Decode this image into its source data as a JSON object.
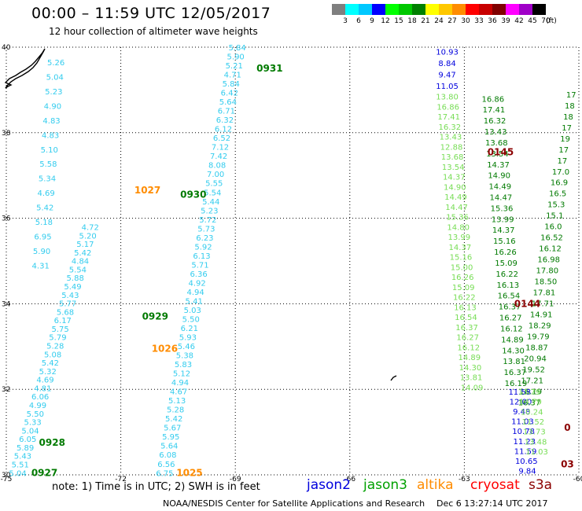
{
  "header": {
    "title": "00:00 – 11:59 UTC 12/05/2017",
    "subtitle": "12 hour collection of altimeter wave heights"
  },
  "legend": {
    "unit": "(ft)",
    "bins": [
      {
        "label": "3",
        "color": "#7f7f7f"
      },
      {
        "label": "6",
        "color": "#00ffff"
      },
      {
        "label": "9",
        "color": "#00c8ff"
      },
      {
        "label": "12",
        "color": "#0000ff"
      },
      {
        "label": "15",
        "color": "#00ff00"
      },
      {
        "label": "18",
        "color": "#00c800"
      },
      {
        "label": "21",
        "color": "#008000"
      },
      {
        "label": "24",
        "color": "#ffff00"
      },
      {
        "label": "27",
        "color": "#ffc800"
      },
      {
        "label": "30",
        "color": "#ff8c00"
      },
      {
        "label": "33",
        "color": "#ff0000"
      },
      {
        "label": "36",
        "color": "#c80000"
      },
      {
        "label": "39",
        "color": "#800000"
      },
      {
        "label": "42",
        "color": "#ff00ff"
      },
      {
        "label": "45",
        "color": "#a000c8"
      },
      {
        "label": "70",
        "color": "#000000"
      }
    ]
  },
  "map": {
    "lon_range": [
      -75,
      -60
    ],
    "lat_range": [
      30,
      40
    ],
    "lon_ticks": [
      "-75",
      "-72",
      "-69",
      "-66",
      "-63",
      "-60"
    ],
    "lat_ticks": [
      "30",
      "32",
      "34",
      "36",
      "38",
      "40"
    ],
    "colors": {
      "cyan": "#33ccee",
      "green": "#007a00",
      "lightgreen": "#77dd55",
      "blue": "#0000dd",
      "orange": "#ff8c00",
      "darkred": "#8b0000"
    },
    "time_labels": [
      {
        "text": "0931",
        "lon": -68.1,
        "lat": 39.5,
        "color": "green"
      },
      {
        "text": "0930",
        "lon": -70.1,
        "lat": 36.55,
        "color": "green"
      },
      {
        "text": "0929",
        "lon": -71.1,
        "lat": 33.7,
        "color": "green"
      },
      {
        "text": "0928",
        "lon": -73.8,
        "lat": 30.75,
        "color": "green"
      },
      {
        "text": "0927",
        "lon": -74.0,
        "lat": 30.05,
        "color": "green"
      },
      {
        "text": "1027",
        "lon": -71.3,
        "lat": 36.65,
        "color": "orange"
      },
      {
        "text": "1026",
        "lon": -70.85,
        "lat": 32.95,
        "color": "orange"
      },
      {
        "text": "1025",
        "lon": -70.2,
        "lat": 30.05,
        "color": "orange"
      },
      {
        "text": "0145",
        "lon": -62.05,
        "lat": 37.55,
        "color": "darkred"
      },
      {
        "text": "0144",
        "lon": -61.35,
        "lat": 34.0,
        "color": "darkred"
      },
      {
        "text": "03",
        "lon": -60.3,
        "lat": 30.25,
        "color": "darkred"
      },
      {
        "text": "0",
        "lon": -60.3,
        "lat": 31.1,
        "color": "darkred"
      }
    ],
    "tracks": [
      {
        "name": "track-0927-a",
        "color": "cyan",
        "lon_start": -73.7,
        "lat_start": 39.65,
        "lon_end": -74.1,
        "lat_end": 34.9,
        "values": [
          "5.26",
          "5.04",
          "5.23",
          "4.90",
          "4.83",
          "4.83",
          "5.10",
          "5.58",
          "5.34",
          "4.69",
          "5.42",
          "5.18",
          "6.95",
          "5.90",
          "4.31"
        ]
      },
      {
        "name": "track-0927-b",
        "color": "cyan",
        "lon_start": -72.8,
        "lat_start": 35.8,
        "lon_end": -74.7,
        "lat_end": 30.05,
        "values": [
          "4.72",
          "5.20",
          "5.17",
          "5.42",
          "4.84",
          "5.54",
          "5.88",
          "5.49",
          "5.43",
          "5.77",
          "5.68",
          "6.17",
          "5.75",
          "5.79",
          "5.28",
          "5.08",
          "5.42",
          "5.32",
          "4.69",
          "4.81",
          "6.06",
          "4.99",
          "5.50",
          "5.33",
          "5.04",
          "6.05",
          "5.89",
          "5.43",
          "5.51",
          "5.04"
        ]
      },
      {
        "name": "track-1025",
        "color": "cyan",
        "lon_start": -68.95,
        "lat_start": 40.0,
        "lon_end": -70.85,
        "lat_end": 30.05,
        "values": [
          "5.84",
          "5.90",
          "5.21",
          "4.71",
          "5.84",
          "6.42",
          "5.64",
          "6.71",
          "6.32",
          "6.12",
          "6.52",
          "7.12",
          "7.42",
          "8.08",
          "7.00",
          "5.55",
          "5.54",
          "5.44",
          "5.23",
          "5.72",
          "5.73",
          "6.23",
          "5.92",
          "6.13",
          "5.71",
          "6.36",
          "4.92",
          "4.94",
          "5.41",
          "5.03",
          "5.50",
          "6.21",
          "5.93",
          "5.46",
          "5.38",
          "5.83",
          "5.12",
          "4.94",
          "4.67",
          "5.13",
          "5.28",
          "5.42",
          "5.67",
          "5.95",
          "5.64",
          "6.08",
          "6.56",
          "6.75"
        ]
      },
      {
        "name": "track-0144-a",
        "color": "blue",
        "lon_start": -63.45,
        "lat_start": 39.9,
        "lon_end": -63.45,
        "lat_end": 39.1,
        "values": [
          "10.93",
          "8.84",
          "9.47",
          "11.05"
        ]
      },
      {
        "name": "track-0144-b",
        "color": "lightgreen",
        "lon_start": -63.45,
        "lat_start": 38.85,
        "lon_end": -62.8,
        "lat_end": 32.05,
        "values": [
          "13.80",
          "16.86",
          "17.41",
          "16.32",
          "13.43",
          "12.88",
          "13.68",
          "13.54",
          "14.37",
          "14.90",
          "14.49",
          "14.47",
          "15.36",
          "14.80",
          "13.99",
          "14.37",
          "15.16",
          "15.00",
          "16.26",
          "15.09",
          "16.22",
          "16.13",
          "16.54",
          "16.37",
          "16.27",
          "16.12",
          "14.89",
          "14.30",
          "13.81",
          "14.09"
        ]
      },
      {
        "name": "track-0145",
        "color": "green",
        "lon_start": -62.25,
        "lat_start": 38.8,
        "lon_end": -61.65,
        "lat_end": 32.15,
        "values": [
          "16.86",
          "17.41",
          "16.32",
          "13.43",
          "13.68",
          "13.54",
          "14.37",
          "14.90",
          "14.49",
          "14.47",
          "15.36",
          "13.99",
          "14.37",
          "15.16",
          "16.26",
          "15.09",
          "16.22",
          "16.13",
          "16.54",
          "16.37",
          "16.27",
          "16.12",
          "14.89",
          "14.30",
          "13.81",
          "16.37",
          "16.19"
        ]
      },
      {
        "name": "track-0144-c",
        "color": "green",
        "lon_start": -60.2,
        "lat_start": 38.9,
        "lon_end": -61.3,
        "lat_end": 31.7,
        "values": [
          "17",
          "18",
          "18",
          "17",
          "19",
          "17",
          "17",
          "17.0",
          "16.9",
          "16.5",
          "15.3",
          "15.1",
          "16.0",
          "16.52",
          "16.12",
          "16.98",
          "17.80",
          "18.50",
          "17.81",
          "17.71",
          "14.91",
          "18.29",
          "19.79",
          "18.87",
          "20.94",
          "19.52",
          "17.21",
          "16.19",
          "16.37"
        ]
      },
      {
        "name": "track-0143",
        "color": "blue",
        "lon_start": -61.55,
        "lat_start": 31.95,
        "lon_end": -61.35,
        "lat_end": 30.1,
        "values": [
          "11.58",
          "12.00",
          "9.48",
          "11.03",
          "10.78",
          "11.23",
          "11.59",
          "10.65",
          "9.84"
        ]
      },
      {
        "name": "track-0143-b",
        "color": "lightgreen",
        "lon_start": -61.3,
        "lat_start": 31.95,
        "lon_end": -61.1,
        "lat_end": 30.55,
        "values": [
          "13.79",
          "14.79",
          "10.24",
          "11.52",
          "13.73",
          "13.48",
          "11.03"
        ]
      }
    ]
  },
  "note": "note:  1) Time is in UTC;  2) SWH is in feet",
  "satellites": [
    {
      "name": "jason2",
      "color": "#0000dd"
    },
    {
      "name": "jason3",
      "color": "#00a000"
    },
    {
      "name": "altika",
      "color": "#ff8c00"
    },
    {
      "name": "cryosat",
      "color": "#ff0000"
    },
    {
      "name": "s3a",
      "color": "#8b0000"
    }
  ],
  "footer": {
    "left": "NOAA/NESDIS Center for Satellite Applications and Research",
    "right": "Dec  6 13:27:14 UTC 2017"
  }
}
